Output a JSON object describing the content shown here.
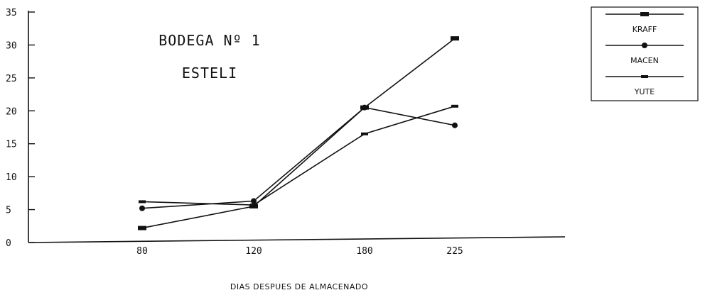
{
  "chart_data": {
    "type": "line",
    "title": [
      "BODEGA Nº 1",
      "ESTELI"
    ],
    "xlabel": "DIAS DESPUES DE ALMACENADO",
    "ylabel": "",
    "categories": [
      "80",
      "120",
      "180",
      "225"
    ],
    "ylim": [
      0,
      35
    ],
    "yticks": [
      "0",
      "5",
      "10",
      "15",
      "20",
      "25",
      "30",
      "35"
    ],
    "grid": false,
    "legend_position": "top-right",
    "series": [
      {
        "name": "KRAFF",
        "values": [
          2.2,
          5.5,
          20.5,
          31.0
        ]
      },
      {
        "name": "MACEN",
        "values": [
          5.2,
          6.3,
          20.5,
          17.8
        ]
      },
      {
        "name": "YUTE",
        "values": [
          6.2,
          5.7,
          16.5,
          20.7
        ]
      }
    ]
  }
}
